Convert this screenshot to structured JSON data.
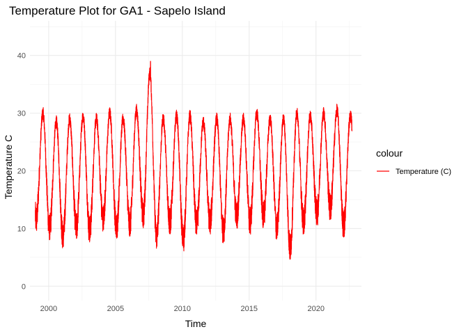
{
  "chart_data": {
    "type": "line",
    "title": "Temperature Plot for GA1 - Sapelo Island",
    "xlabel": "Time",
    "ylabel": "Temperature C",
    "xlim": [
      1998.6,
      2023.4
    ],
    "ylim": [
      -2.5,
      46
    ],
    "x_ticks": [
      2000,
      2005,
      2010,
      2015,
      2020
    ],
    "y_ticks": [
      0,
      10,
      20,
      30,
      40
    ],
    "x_tick_labels": [
      "2000",
      "2005",
      "2010",
      "2015",
      "2020"
    ],
    "y_tick_labels": [
      "0",
      "10",
      "20",
      "30",
      "40"
    ],
    "grid": true,
    "legend": {
      "title": "colour",
      "position": "right",
      "entries": [
        "Temperature (C)"
      ]
    },
    "series": [
      {
        "name": "Temperature (C)",
        "color": "#ff0000",
        "x_start": 1999.0,
        "x_end": 2022.7,
        "summer_max": [
          32,
          30.5,
          31,
          31.5,
          31,
          32,
          31,
          32.5,
          39,
          31,
          31.5,
          31.5,
          30.5,
          31,
          31,
          31,
          32,
          31,
          31,
          32,
          31.5,
          32,
          32.5,
          31.5
        ],
        "winter_min": [
          9.5,
          7.8,
          6.5,
          8,
          7.5,
          9.5,
          8,
          8.5,
          10,
          6.5,
          9,
          6,
          8.5,
          9,
          7.5,
          10,
          9,
          10,
          8,
          4.5,
          9,
          10.5,
          11.5,
          8.5,
          14
        ]
      }
    ]
  }
}
